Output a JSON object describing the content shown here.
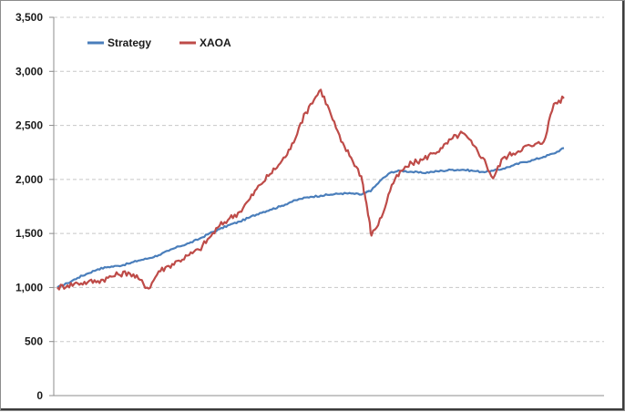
{
  "chart_data": {
    "type": "line",
    "title": "",
    "xlabel": "",
    "ylabel": "",
    "ylim": [
      0,
      3500
    ],
    "yticks": [
      0,
      500,
      1000,
      1500,
      2000,
      2500,
      3000,
      3500
    ],
    "ytick_labels": [
      "0",
      "500",
      "1,000",
      "1,500",
      "2,000",
      "2,500",
      "3,000",
      "3,500"
    ],
    "grid": "horizontal dashed",
    "legend": "top-left",
    "x": [
      0,
      2,
      4,
      6,
      8,
      10,
      12,
      14,
      16,
      18,
      20,
      22,
      24,
      26,
      28,
      30,
      32,
      34,
      36,
      38,
      40,
      42,
      44,
      46,
      48,
      50,
      52,
      54,
      56,
      58,
      60,
      61,
      62,
      64,
      66,
      68,
      70,
      72,
      74,
      76,
      78,
      80,
      82,
      84,
      86,
      88,
      90,
      92,
      94,
      96,
      98,
      100
    ],
    "series": [
      {
        "name": "Strategy",
        "color": "#4a7ebb",
        "values": [
          1000,
          1040,
          1090,
          1130,
          1170,
          1190,
          1200,
          1220,
          1250,
          1270,
          1300,
          1340,
          1380,
          1410,
          1450,
          1500,
          1540,
          1580,
          1610,
          1650,
          1690,
          1720,
          1750,
          1790,
          1820,
          1840,
          1850,
          1860,
          1870,
          1870,
          1860,
          1880,
          1900,
          2000,
          2070,
          2080,
          2070,
          2060,
          2070,
          2080,
          2090,
          2090,
          2080,
          2070,
          2080,
          2100,
          2130,
          2160,
          2180,
          2210,
          2240,
          2290
        ]
      },
      {
        "name": "XAOA",
        "color": "#be4b48",
        "values": [
          1000,
          1020,
          1040,
          1050,
          1060,
          1090,
          1120,
          1140,
          1080,
          990,
          1150,
          1200,
          1250,
          1300,
          1350,
          1460,
          1570,
          1640,
          1700,
          1820,
          1950,
          2050,
          2150,
          2280,
          2520,
          2700,
          2830,
          2600,
          2350,
          2200,
          2030,
          1780,
          1480,
          1650,
          1950,
          2080,
          2150,
          2180,
          2240,
          2290,
          2380,
          2430,
          2320,
          2200,
          2010,
          2200,
          2240,
          2300,
          2310,
          2350,
          2700,
          2750
        ]
      }
    ]
  }
}
